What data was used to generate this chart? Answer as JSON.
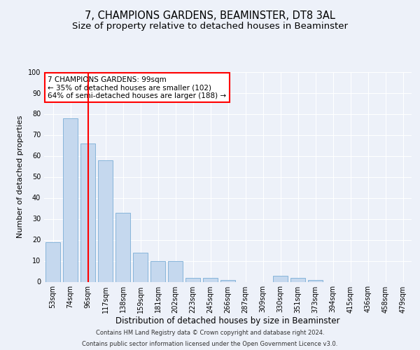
{
  "title1": "7, CHAMPIONS GARDENS, BEAMINSTER, DT8 3AL",
  "title2": "Size of property relative to detached houses in Beaminster",
  "xlabel": "Distribution of detached houses by size in Beaminster",
  "ylabel": "Number of detached properties",
  "categories": [
    "53sqm",
    "74sqm",
    "96sqm",
    "117sqm",
    "138sqm",
    "159sqm",
    "181sqm",
    "202sqm",
    "223sqm",
    "245sqm",
    "266sqm",
    "287sqm",
    "309sqm",
    "330sqm",
    "351sqm",
    "373sqm",
    "394sqm",
    "415sqm",
    "436sqm",
    "458sqm",
    "479sqm"
  ],
  "values": [
    19,
    78,
    66,
    58,
    33,
    14,
    10,
    10,
    2,
    2,
    1,
    0,
    0,
    3,
    2,
    1,
    0,
    0,
    0,
    0,
    0
  ],
  "bar_color": "#c5d8ee",
  "bar_edge_color": "#7aaed6",
  "redline_index": 2,
  "ylim": [
    0,
    100
  ],
  "yticks": [
    0,
    10,
    20,
    30,
    40,
    50,
    60,
    70,
    80,
    90,
    100
  ],
  "annotation_title": "7 CHAMPIONS GARDENS: 99sqm",
  "annotation_line1": "← 35% of detached houses are smaller (102)",
  "annotation_line2": "64% of semi-detached houses are larger (188) →",
  "footer1": "Contains HM Land Registry data © Crown copyright and database right 2024.",
  "footer2": "Contains public sector information licensed under the Open Government Licence v3.0.",
  "background_color": "#edf1f9",
  "plot_bg_color": "#edf1f9",
  "grid_color": "#ffffff",
  "title_fontsize": 10.5,
  "subtitle_fontsize": 9.5,
  "ylabel_fontsize": 8,
  "xlabel_fontsize": 8.5,
  "tick_fontsize": 7,
  "ann_fontsize": 7.5,
  "footer_fontsize": 6.0
}
